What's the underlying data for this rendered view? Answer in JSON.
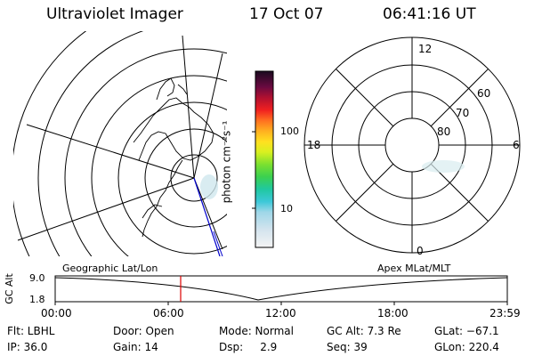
{
  "header": {
    "title": "Ultraviolet Imager",
    "date": "17 Oct 07",
    "time": "06:41:16 UT"
  },
  "colorbar": {
    "unit_label": "photon cm⁻²s⁻¹",
    "ticks": [
      "100",
      "10"
    ]
  },
  "polar_plot": {
    "mlt_labels": {
      "top": "12",
      "right": "6",
      "bottom": "0",
      "left": "18"
    },
    "lat_labels": [
      "60",
      "70",
      "80"
    ]
  },
  "timeline": {
    "left_caption": "Geographic Lat/Lon",
    "right_caption": "Apex MLat/MLT",
    "y_axis_label": "GC Alt",
    "y_ticks": [
      "9.0",
      "1.8"
    ],
    "x_ticks": [
      "00:00",
      "06:00",
      "12:00",
      "18:00",
      "23:59"
    ],
    "marker_time": "06:41"
  },
  "info": {
    "row1": [
      {
        "label": "Flt: LBHL"
      },
      {
        "label": "Door: Open"
      },
      {
        "label": "Mode: Normal"
      },
      {
        "label": "GC Alt: 7.3 Re"
      },
      {
        "label": "GLat: −67.1"
      }
    ],
    "row2": [
      {
        "label": "IP: 36.0"
      },
      {
        "label": "Gain: 14"
      },
      {
        "label": "Dsp:     2.9"
      },
      {
        "label": "Seq: 39"
      },
      {
        "label": "GLon: 220.4"
      }
    ]
  }
}
